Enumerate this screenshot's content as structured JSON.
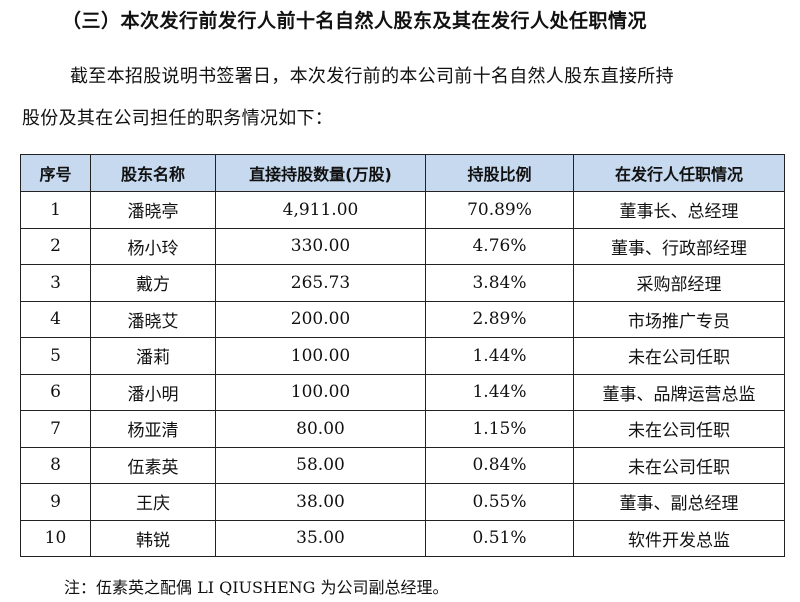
{
  "heading": "（三）本次发行前发行人前十名自然人股东及其在发行人处任职情况",
  "paragraph": {
    "line1": "截至本招股说明书签署日，本次发行前的本公司前十名自然人股东直接所持",
    "line2": "股份及其在公司担任的职务情况如下："
  },
  "table": {
    "columns": [
      "序号",
      "股东名称",
      "直接持股数量(万股)",
      "持股比例",
      "在发行人任职情况"
    ],
    "rows": [
      {
        "no": "1",
        "name": "潘晓亭",
        "shares": "4,911.00",
        "ratio": "70.89%",
        "position": "董事长、总经理"
      },
      {
        "no": "2",
        "name": "杨小玲",
        "shares": "330.00",
        "ratio": "4.76%",
        "position": "董事、行政部经理"
      },
      {
        "no": "3",
        "name": "戴方",
        "shares": "265.73",
        "ratio": "3.84%",
        "position": "采购部经理"
      },
      {
        "no": "4",
        "name": "潘晓艾",
        "shares": "200.00",
        "ratio": "2.89%",
        "position": "市场推广专员"
      },
      {
        "no": "5",
        "name": "潘莉",
        "shares": "100.00",
        "ratio": "1.44%",
        "position": "未在公司任职"
      },
      {
        "no": "6",
        "name": "潘小明",
        "shares": "100.00",
        "ratio": "1.44%",
        "position": "董事、品牌运营总监"
      },
      {
        "no": "7",
        "name": "杨亚清",
        "shares": "80.00",
        "ratio": "1.15%",
        "position": "未在公司任职"
      },
      {
        "no": "8",
        "name": "伍素英",
        "shares": "58.00",
        "ratio": "0.84%",
        "position": "未在公司任职"
      },
      {
        "no": "9",
        "name": "王庆",
        "shares": "38.00",
        "ratio": "0.55%",
        "position": "董事、副总经理"
      },
      {
        "no": "10",
        "name": "韩锐",
        "shares": "35.00",
        "ratio": "0.51%",
        "position": "软件开发总监"
      }
    ]
  },
  "note": "注：伍素英之配偶 LI QIUSHENG 为公司副总经理。",
  "colors": {
    "header_background": "#c6d9ef",
    "border": "#222222",
    "text": "#111111"
  }
}
